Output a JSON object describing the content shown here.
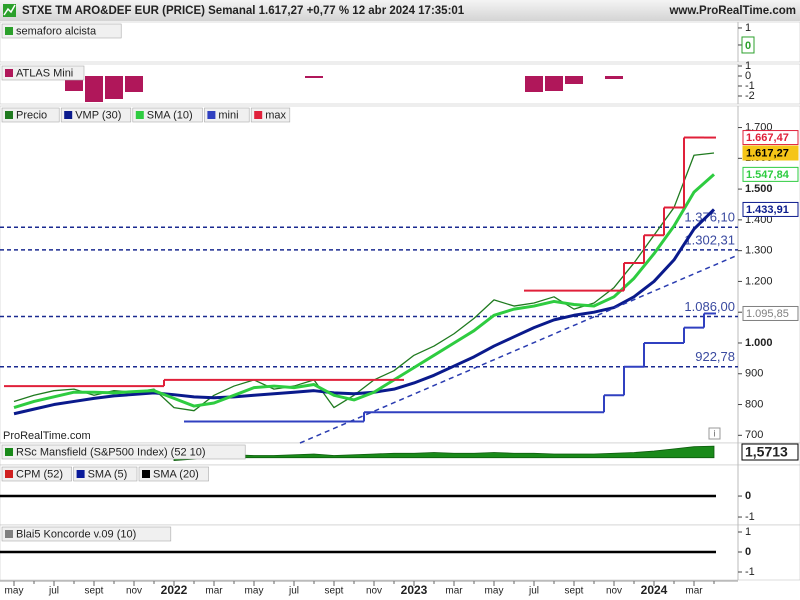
{
  "header": {
    "title": "STXE TM ARO&DEF EUR (PRICE) Semanal 1.617,27 +0,77 % 12 abr 2024 17:35:01",
    "site": "www.ProRealTime.com"
  },
  "watermark": "ProRealTime.com",
  "chart_data": [
    {
      "type": "indicator",
      "series": [
        {
          "name": "semaforo alcista",
          "color": "#2ca02c"
        }
      ],
      "ylim": [
        -1,
        1.35
      ],
      "yticks": [
        1,
        0
      ],
      "current": 0
    },
    {
      "type": "bar",
      "series": [
        {
          "name": "ATLAS Mini",
          "color": "#b0175a",
          "values": [
            null,
            null,
            null,
            -1.5,
            -2.6,
            -2.3,
            -1.6,
            null,
            null,
            null,
            null,
            null,
            null,
            null,
            null,
            -0.2,
            null,
            null,
            null,
            null,
            null,
            null,
            null,
            null,
            null,
            null,
            -1.6,
            -1.5,
            -0.8,
            null,
            -0.3,
            null,
            null,
            null,
            null,
            null
          ]
        }
      ],
      "ylim": [
        -2.8,
        1.2
      ],
      "yticks": [
        1,
        0,
        -1,
        -2
      ]
    },
    {
      "type": "line",
      "categories": [
        "may",
        null,
        "jul",
        null,
        "sept",
        null,
        "nov",
        null,
        "2022",
        null,
        "mar",
        null,
        "may",
        null,
        "jul",
        null,
        "sept",
        null,
        "nov",
        null,
        "2023",
        null,
        "mar",
        null,
        "may",
        null,
        "jul",
        null,
        "sept",
        null,
        "nov",
        null,
        "2024",
        null,
        "mar",
        null
      ],
      "series": [
        {
          "name": "Precio",
          "color": "#1f7a1f",
          "values": [
            810,
            830,
            845,
            850,
            830,
            845,
            840,
            850,
            790,
            780,
            830,
            860,
            880,
            850,
            860,
            880,
            790,
            830,
            880,
            910,
            960,
            990,
            1030,
            1080,
            1140,
            1120,
            1130,
            1150,
            1110,
            1130,
            1180,
            1260,
            1350,
            1440,
            1610,
            1617.27
          ]
        },
        {
          "name": "VMP (30)",
          "color": "#0a1a8c",
          "values": [
            770,
            785,
            800,
            810,
            820,
            828,
            833,
            838,
            832,
            825,
            822,
            825,
            830,
            835,
            840,
            845,
            838,
            835,
            840,
            850,
            870,
            895,
            925,
            955,
            990,
            1020,
            1050,
            1075,
            1090,
            1100,
            1115,
            1150,
            1200,
            1270,
            1370,
            1433.91
          ]
        },
        {
          "name": "SMA (10)",
          "color": "#2ecc40",
          "values": [
            790,
            810,
            825,
            840,
            840,
            838,
            842,
            845,
            820,
            795,
            805,
            830,
            855,
            860,
            855,
            865,
            830,
            815,
            840,
            880,
            920,
            960,
            1000,
            1040,
            1090,
            1110,
            1120,
            1135,
            1125,
            1120,
            1150,
            1210,
            1290,
            1380,
            1490,
            1547.84
          ]
        },
        {
          "name": "mini",
          "color": "#3040c0",
          "step": true,
          "values": [
            null,
            null,
            null,
            null,
            null,
            null,
            null,
            null,
            null,
            745,
            745,
            745,
            745,
            745,
            745,
            745,
            745,
            745,
            775,
            775,
            775,
            775,
            775,
            775,
            775,
            775,
            775,
            775,
            775,
            775,
            830,
            922.78,
            1000,
            1000,
            1050,
            1095.85
          ]
        },
        {
          "name": "max",
          "color": "#e0203a",
          "step": true,
          "values": [
            860,
            860,
            860,
            860,
            860,
            860,
            860,
            860,
            880,
            880,
            880,
            880,
            880,
            880,
            880,
            880,
            880,
            880,
            880,
            880,
            null,
            null,
            null,
            null,
            null,
            null,
            1170,
            1170,
            1170,
            1170,
            1170,
            1260,
            1350,
            1440,
            1667.47,
            1667.47
          ]
        }
      ],
      "ylim": [
        675,
        1770
      ],
      "yticks": [
        {
          "value": 1700,
          "label": "1.700"
        },
        {
          "value": 1600,
          "label": "1.600"
        },
        {
          "value": 1500,
          "label": "1.500"
        },
        {
          "value": 1400,
          "label": "1.400"
        },
        {
          "value": 1300,
          "label": "1.300"
        },
        {
          "value": 1200,
          "label": "1.200"
        },
        {
          "value": 1100,
          "label": "1.100"
        },
        {
          "value": 1000,
          "label": "1.000"
        },
        900,
        800,
        700
      ],
      "levels": [
        {
          "value": 1376.1,
          "label": "1.376,10"
        },
        {
          "value": 1302.31,
          "label": "1.302,31"
        },
        {
          "value": 1086.0,
          "label": "1.086,00"
        },
        {
          "value": 922.78,
          "label": "922,78"
        }
      ],
      "tags": [
        {
          "value": 1667.47,
          "label": "1.667,47",
          "color": "#e0203a"
        },
        {
          "value": 1617.27,
          "label": "1.617,27",
          "color": "#f5c518"
        },
        {
          "value": 1547.84,
          "label": "1.547,84",
          "color": "#2ecc40"
        },
        {
          "value": 1433.91,
          "label": "1.433,91",
          "color": "#0a1a8c"
        },
        {
          "value": 1095.85,
          "label": "1.095,85",
          "color": "#808080"
        }
      ]
    },
    {
      "type": "area",
      "series": [
        {
          "name": "RSc Mansfield (S&P500 Index) (52 10)",
          "color": "#1a8a1a",
          "values": [
            null,
            null,
            null,
            null,
            null,
            null,
            null,
            null,
            -0.4,
            -0.2,
            0.3,
            0.4,
            0.3,
            0.3,
            0.4,
            0.5,
            0.3,
            0.4,
            0.5,
            0.6,
            0.6,
            0.7,
            0.6,
            0.6,
            0.7,
            0.6,
            0.6,
            0.5,
            0.5,
            0.5,
            0.6,
            0.7,
            0.9,
            1.2,
            1.5,
            1.5713
          ]
        }
      ],
      "ylim": [
        -1,
        2
      ],
      "current": {
        "value": 1.5713,
        "label": "1,5713"
      }
    },
    {
      "type": "line",
      "series": [
        {
          "name": "CPM (52)",
          "color": "#d02020"
        },
        {
          "name": "SMA (5)",
          "color": "#0a1a9a"
        },
        {
          "name": "SMA (20)",
          "color": "#000000"
        }
      ],
      "ylim": [
        -1.38,
        1.48
      ],
      "yticks": [
        0,
        -1
      ],
      "zero_line": true
    },
    {
      "type": "line",
      "series": [
        {
          "name": "Blai5 Koncorde v.09 (10)",
          "color": "#808080"
        }
      ],
      "ylim": [
        -1.4,
        1.35
      ],
      "yticks": [
        1,
        0,
        -1
      ],
      "zero_line": true
    }
  ]
}
